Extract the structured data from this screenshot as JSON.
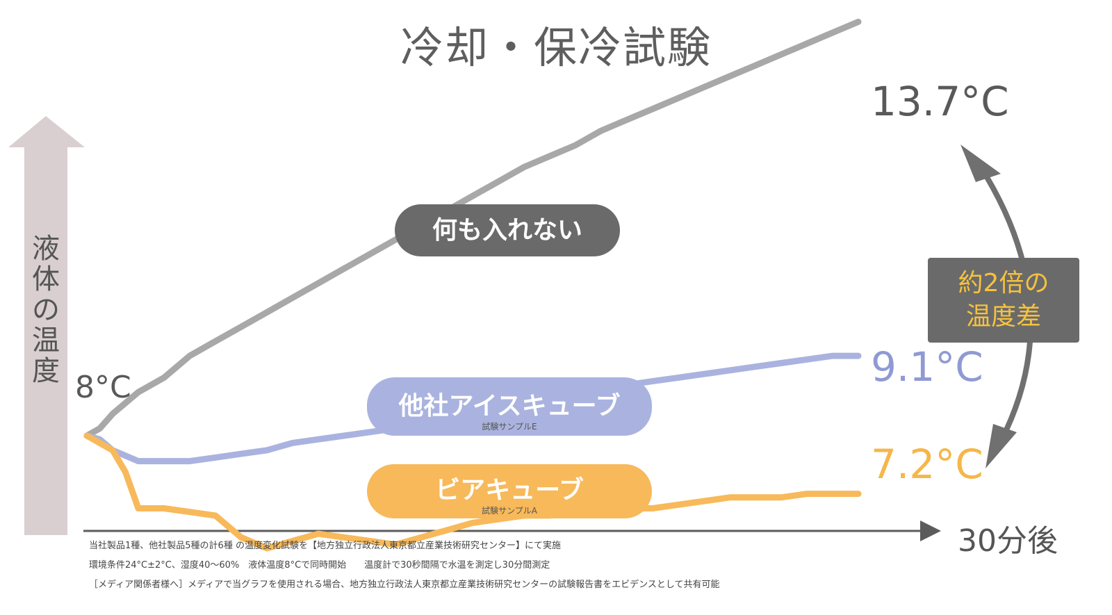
{
  "title": "冷却・保冷試験",
  "y_axis_label": [
    "液",
    "体",
    "の",
    "温",
    "度"
  ],
  "start_label": "8°C",
  "x_axis_end_label": "30分後",
  "difference_label": [
    "約2倍の",
    "温度差"
  ],
  "footnotes": [
    "当社製品1種、他社製品5種の計6種 の温度変化試験を【地方独立行政法人東京都立産業技術研究センター】にて実施",
    "環境条件24°C±2°C、湿度40〜60%　液体温度8°Cで同時開始　　温度計で30秒間隔で水温を測定し30分間測定",
    "［メディア関係者様へ］メディアで当グラフを使用される場合、地方独立行政法人東京都立産業技術研究センターの試験報告書をエビデンスとして共有可能"
  ],
  "colors": {
    "gray": "#a8a8a8",
    "blue": "#aab3df",
    "orange": "#f8b95a",
    "axis": "#d9cfd0",
    "dark": "#6a6a6a"
  },
  "chart_data": {
    "type": "line",
    "title": "冷却・保冷試験",
    "xlabel": "30分後",
    "ylabel": "液体の温度",
    "xlim": [
      0,
      30
    ],
    "ylim": [
      5.5,
      14
    ],
    "series": [
      {
        "name": "何も入れない",
        "sample_label": "",
        "end_label": "13.7°C",
        "color": "#a8a8a8",
        "x": [
          0,
          0.5,
          1,
          2,
          3,
          4,
          5,
          6,
          7,
          8,
          9,
          10,
          11,
          12,
          13,
          14,
          15,
          16,
          17,
          18,
          19,
          20,
          21,
          22,
          23,
          24,
          25,
          26,
          27,
          28,
          29,
          30
        ],
        "values": [
          8.0,
          8.1,
          8.3,
          8.6,
          8.8,
          9.1,
          9.3,
          9.5,
          9.7,
          9.9,
          10.1,
          10.3,
          10.5,
          10.7,
          10.9,
          11.1,
          11.3,
          11.5,
          11.7,
          11.85,
          12.0,
          12.2,
          12.35,
          12.5,
          12.65,
          12.8,
          12.95,
          13.1,
          13.25,
          13.4,
          13.55,
          13.7
        ]
      },
      {
        "name": "他社アイスキューブ",
        "sample_label": "試験サンプルE",
        "end_label": "9.1°C",
        "color": "#aab3df",
        "x": [
          0,
          0.5,
          1,
          2,
          3,
          4,
          5,
          6,
          7,
          8,
          9,
          10,
          11,
          12,
          13,
          14,
          15,
          16,
          17,
          18,
          19,
          20,
          21,
          22,
          23,
          24,
          25,
          26,
          27,
          28,
          29,
          30
        ],
        "values": [
          8.0,
          7.95,
          7.8,
          7.65,
          7.65,
          7.65,
          7.7,
          7.75,
          7.8,
          7.9,
          7.95,
          8.0,
          8.05,
          8.1,
          8.15,
          8.2,
          8.25,
          8.3,
          8.4,
          8.5,
          8.6,
          8.65,
          8.7,
          8.75,
          8.8,
          8.85,
          8.9,
          8.95,
          9.0,
          9.05,
          9.1,
          9.1
        ]
      },
      {
        "name": "ビアキューブ",
        "sample_label": "試験サンプルA",
        "end_label": "7.2°C",
        "color": "#f8b95a",
        "x": [
          0,
          0.5,
          1,
          1.5,
          2,
          3,
          4,
          5,
          6,
          7,
          8,
          9,
          10,
          11,
          12,
          13,
          14,
          15,
          16,
          17,
          18,
          19,
          20,
          21,
          22,
          23,
          24,
          25,
          26,
          27,
          28,
          29,
          30
        ],
        "values": [
          8.0,
          7.9,
          7.8,
          7.5,
          7.0,
          7.0,
          6.95,
          6.9,
          6.6,
          6.45,
          6.55,
          6.65,
          6.6,
          6.55,
          6.5,
          6.6,
          6.7,
          6.8,
          6.85,
          6.9,
          6.9,
          6.95,
          6.95,
          7.0,
          7.0,
          7.05,
          7.1,
          7.15,
          7.15,
          7.15,
          7.2,
          7.2,
          7.2
        ]
      }
    ]
  }
}
